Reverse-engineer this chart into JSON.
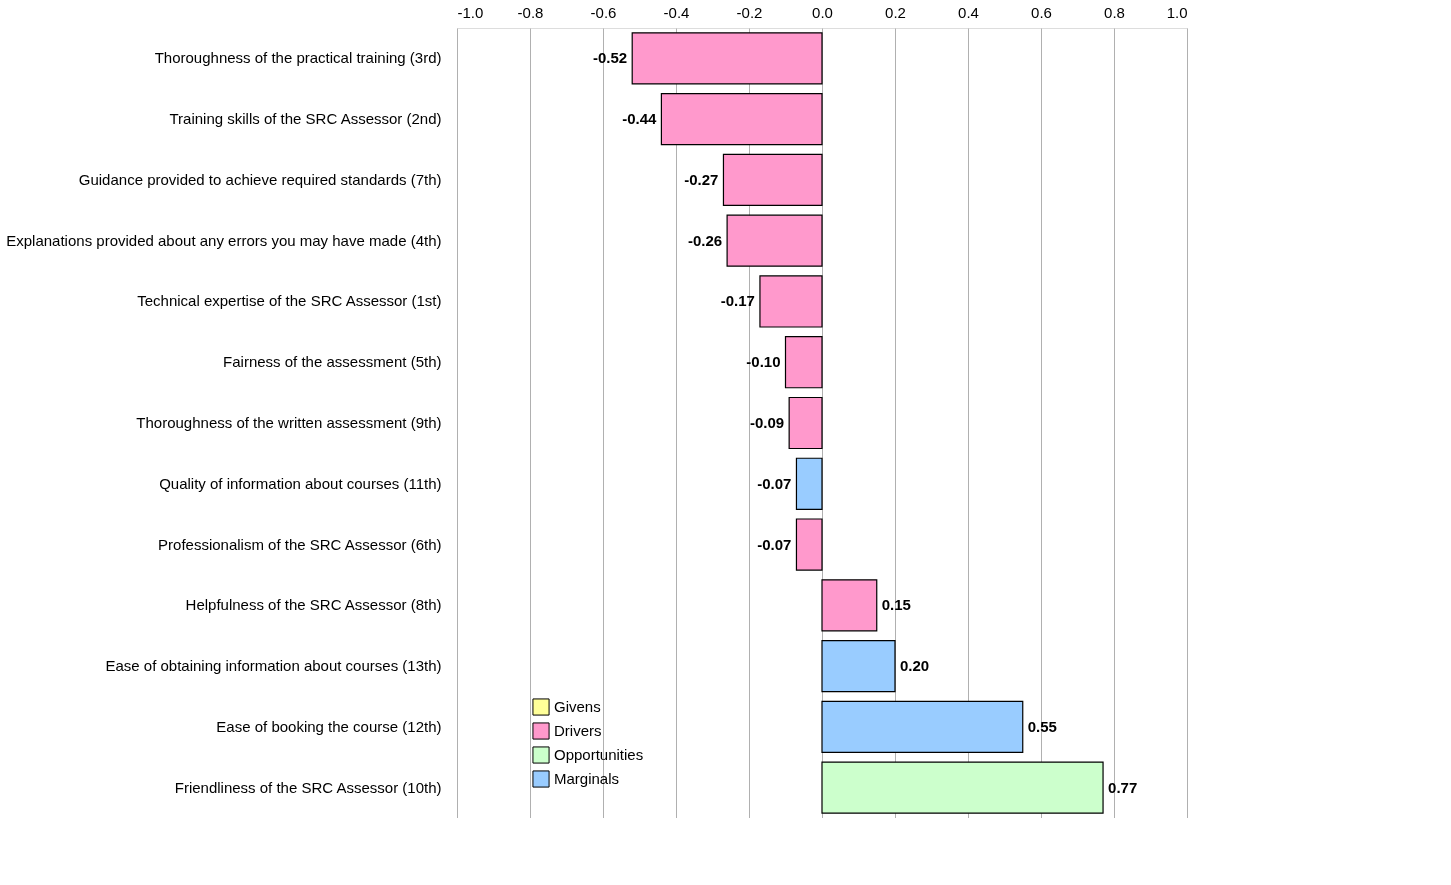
{
  "chart_data": {
    "type": "bar",
    "orientation": "horizontal",
    "stacked": true,
    "categories": [
      "Thoroughness of the practical training (3rd)",
      "Training skills of the SRC Assessor (2nd)",
      "Guidance provided to achieve required standards (7th)",
      "Explanations provided about any errors you may have made (4th)",
      "Technical expertise of the SRC Assessor (1st)",
      "Fairness of the assessment (5th)",
      "Thoroughness of the written assessment (9th)",
      "Quality of information about courses (11th)",
      "Professionalism of the SRC Assessor (6th)",
      "Helpfulness of the SRC Assessor (8th)",
      "Ease of obtaining information about courses (13th)",
      "Ease of booking the course (12th)",
      "Friendliness of the SRC Assessor (10th)"
    ],
    "series": [
      {
        "name": "Givens",
        "color": "#ffff99",
        "values": [
          null,
          null,
          null,
          null,
          null,
          null,
          null,
          null,
          null,
          null,
          null,
          null,
          null
        ],
        "value_labels": [
          null,
          null,
          null,
          null,
          null,
          null,
          null,
          null,
          null,
          null,
          null,
          null,
          null
        ]
      },
      {
        "name": "Drivers",
        "color": "#ff99cc",
        "values": [
          -0.52,
          -0.44,
          -0.27,
          -0.26,
          -0.17,
          -0.1,
          -0.09,
          null,
          -0.07,
          0.15,
          null,
          null,
          null
        ],
        "value_labels": [
          "-0.52",
          "-0.44",
          "-0.27",
          "-0.26",
          "-0.17",
          "-0.10",
          "-0.09",
          null,
          "-0.07",
          "0.15",
          null,
          null,
          null
        ]
      },
      {
        "name": "Opportunities",
        "color": "#ccffcc",
        "values": [
          null,
          null,
          null,
          null,
          null,
          null,
          null,
          null,
          null,
          null,
          null,
          null,
          0.77
        ],
        "value_labels": [
          null,
          null,
          null,
          null,
          null,
          null,
          null,
          null,
          null,
          null,
          null,
          null,
          "0.77"
        ]
      },
      {
        "name": "Marginals",
        "color": "#99ccff",
        "values": [
          null,
          null,
          null,
          null,
          null,
          null,
          null,
          -0.07,
          null,
          null,
          0.2,
          0.55,
          null
        ],
        "value_labels": [
          null,
          null,
          null,
          null,
          null,
          null,
          null,
          "-0.07",
          null,
          null,
          "0.20",
          "0.55",
          null
        ]
      }
    ],
    "xlim": [
      -1.0,
      1.0
    ],
    "xticks": [
      {
        "value": -1.0,
        "label": "-1.0"
      },
      {
        "value": -0.8,
        "label": "-0.8"
      },
      {
        "value": -0.6,
        "label": "-0.6"
      },
      {
        "value": -0.4,
        "label": "-0.4"
      },
      {
        "value": -0.2,
        "label": "-0.2"
      },
      {
        "value": 0.0,
        "label": "0.0"
      },
      {
        "value": 0.2,
        "label": "0.2"
      },
      {
        "value": 0.4,
        "label": "0.4"
      },
      {
        "value": 0.6,
        "label": "0.6"
      },
      {
        "value": 0.8,
        "label": "0.8"
      },
      {
        "value": 1.0,
        "label": "1.0"
      }
    ],
    "grid": "x",
    "legend": "bottom left"
  }
}
